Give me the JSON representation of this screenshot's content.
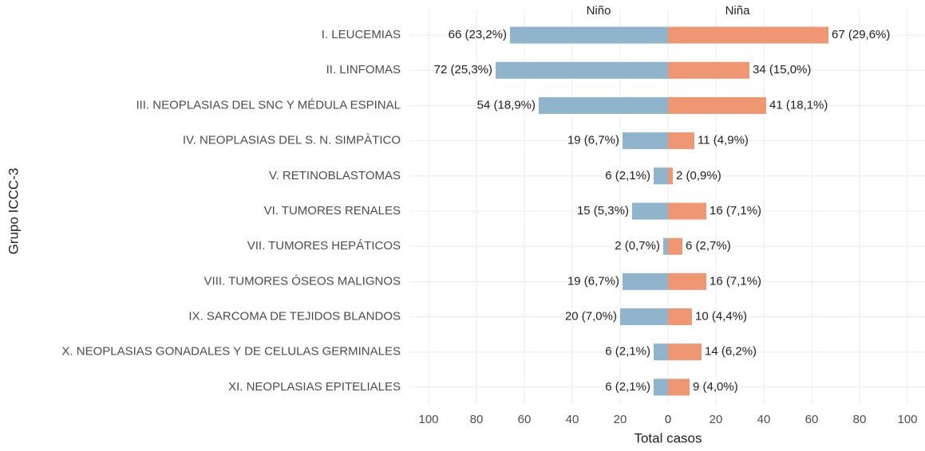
{
  "chart_data": {
    "type": "pyramid",
    "x_label": "Total casos",
    "y_label": "Grupo ICCC-3",
    "categories": [
      "I. LEUCEMIAS",
      "II. LINFOMAS",
      "III. NEOPLASIAS DEL SNC Y MÉDULA ESPINAL",
      "IV. NEOPLASIAS DEL S. N. SIMPÀTICO",
      "V. RETINOBLASTOMAS",
      "VI. TUMORES RENALES",
      "VII. TUMORES HEPÁTICOS",
      "VIII. TUMORES ÓSEOS MALIGNOS",
      "IX. SARCOMA DE TEJIDOS BLANDOS",
      "X. NEOPLASIAS GONADALES Y DE CELULAS GERMINALES",
      "XI. NEOPLASIAS EPITELIALES"
    ],
    "series": [
      {
        "name": "Niño",
        "color": "#8fb4cb",
        "side": "left",
        "values": [
          66,
          72,
          54,
          19,
          6,
          15,
          2,
          19,
          20,
          6,
          6
        ],
        "value_labels": [
          "66 (23,2%)",
          "72 (25,3%)",
          "54 (18,9%)",
          "19 (6,7%)",
          "6 (2,1%)",
          "15 (5,3%)",
          "2 (0,7%)",
          "19 (6,7%)",
          "20 (7,0%)",
          "6 (2,1%)",
          "6 (2,1%)"
        ]
      },
      {
        "name": "Niña",
        "color": "#ef9673",
        "side": "right",
        "values": [
          67,
          34,
          41,
          11,
          2,
          16,
          6,
          16,
          10,
          14,
          9
        ],
        "value_labels": [
          "67 (29,6%)",
          "34 (15,0%)",
          "41 (18,1%)",
          "11 (4,9%)",
          "2 (0,9%)",
          "16 (7,1%)",
          "6 (2,7%)",
          "16 (7,1%)",
          "10 (4,4%)",
          "14 (6,2%)",
          "9 (4,0%)"
        ]
      }
    ],
    "xlim": [
      0,
      108
    ],
    "xticks": [
      0,
      20,
      40,
      60,
      80,
      100
    ],
    "grid": true
  }
}
